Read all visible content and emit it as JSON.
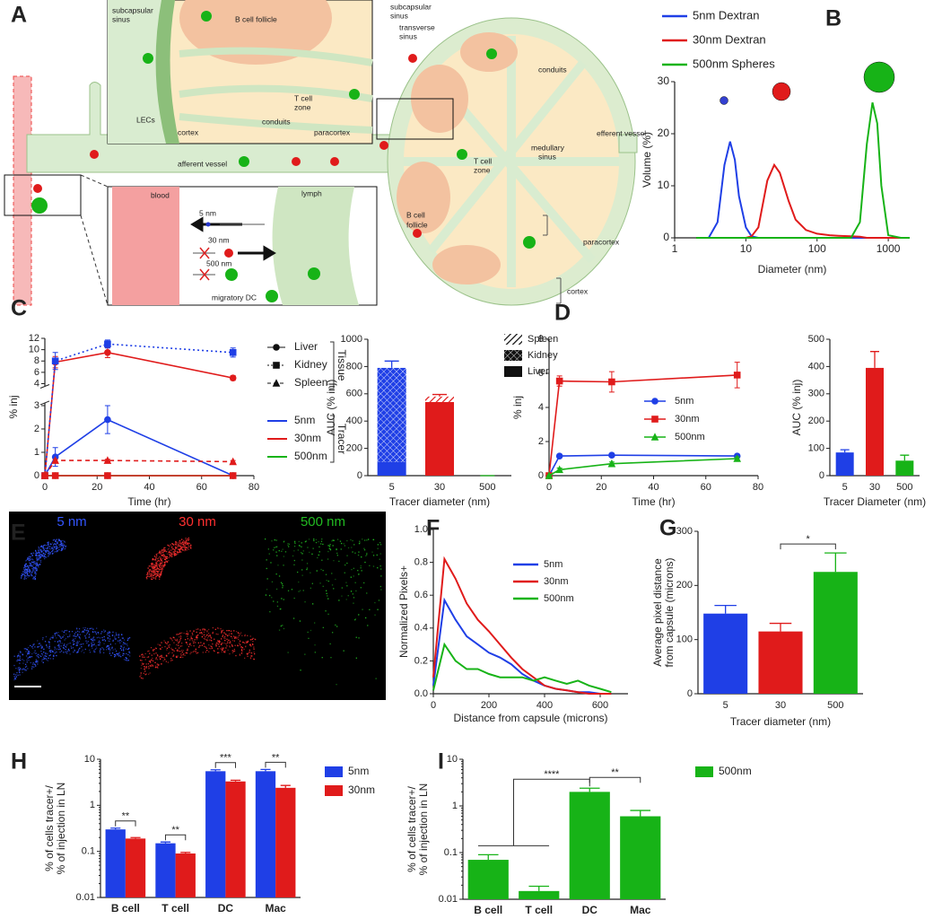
{
  "panels": [
    "A",
    "B",
    "C",
    "D",
    "E",
    "F",
    "G",
    "H",
    "I"
  ],
  "diagram": {
    "labels": [
      "subcapsular",
      "sinus",
      "B cell follicle",
      "LECs",
      "cortex",
      "conduits",
      "T cell",
      "zone",
      "paracortex",
      "afferent vessel",
      "blood",
      "5 nm",
      "30 nm",
      "500 nm",
      "lymph",
      "migratory DC",
      "subcapsular",
      "sinus",
      "transverse",
      "sinus",
      "conduits",
      "efferent vessel",
      "medullary",
      "sinus",
      "T cell",
      "zone",
      "B cell",
      "follicle",
      "paracortex",
      "cortex"
    ]
  },
  "image": {
    "labels": [
      "5 nm",
      "30 nm",
      "500 nm"
    ]
  },
  "chart_data": [
    {
      "type": "line",
      "xlabel": "Diameter (nm)",
      "ylabel": "Volume (%)",
      "xlog": true,
      "xlim": [
        1,
        2000
      ],
      "xticks": [
        1,
        10,
        100,
        1000
      ],
      "ylim": [
        0,
        30
      ],
      "yticks": [
        0,
        10,
        20,
        30
      ],
      "x": [
        2,
        3,
        4,
        5,
        6,
        7,
        8,
        10,
        12,
        15,
        20,
        25,
        30,
        40,
        50,
        70,
        100,
        150,
        200,
        300,
        400,
        500,
        600,
        700,
        800,
        1000,
        1500,
        2000
      ],
      "series": [
        {
          "name": "5nm Dextran",
          "color": "#1f3fe6",
          "values": [
            0,
            0,
            3,
            14,
            18.5,
            15,
            8,
            2,
            0.3,
            0,
            0,
            0,
            0,
            0,
            0,
            0,
            0,
            0,
            0,
            0,
            0,
            0,
            0,
            0,
            0,
            0,
            0,
            0
          ]
        },
        {
          "name": "30nm Dextran",
          "color": "#e01b1b",
          "values": [
            0,
            0,
            0,
            0,
            0,
            0,
            0,
            0,
            0.3,
            2,
            11,
            14,
            12.5,
            7,
            3.5,
            1.5,
            0.8,
            0.5,
            0.4,
            0.3,
            0.2,
            0,
            0,
            0,
            0,
            0,
            0,
            0
          ]
        },
        {
          "name": "500nm Spheres",
          "color": "#17b317",
          "values": [
            0,
            0,
            0,
            0,
            0,
            0,
            0,
            0,
            0,
            0,
            0,
            0,
            0,
            0,
            0,
            0,
            0,
            0,
            0,
            0,
            3,
            18,
            26,
            22,
            10,
            0.5,
            0,
            0
          ]
        }
      ]
    },
    {
      "type": "line",
      "xlabel": "Time (hr)",
      "ylabel": "% inj",
      "xlim": [
        0,
        80
      ],
      "xticks": [
        0,
        20,
        40,
        60,
        80
      ],
      "ylim": [
        0,
        12
      ],
      "ybreak": [
        3,
        4
      ],
      "yticks": [
        0,
        1,
        2,
        3,
        4,
        6,
        8,
        10,
        12
      ],
      "x": [
        0,
        4,
        24,
        72
      ],
      "legend": {
        "groups": [
          {
            "title": "Tissue",
            "items": [
              "Liver",
              "Kidney",
              "Spleen"
            ],
            "markers": [
              "circle",
              "square",
              "triangle"
            ]
          },
          {
            "title": "Tracer",
            "items": [
              "5nm",
              "30nm",
              "500nm"
            ],
            "colors": [
              "#1f3fe6",
              "#e01b1b",
              "#17b317"
            ]
          }
        ]
      },
      "series": [
        {
          "color": "#1f3fe6",
          "marker": "circle",
          "dash": "solid",
          "values": [
            0,
            0.8,
            2.4,
            0
          ],
          "errors": [
            0,
            0.4,
            0.6,
            0
          ]
        },
        {
          "color": "#e01b1b",
          "marker": "circle",
          "dash": "solid",
          "values": [
            0,
            7.8,
            9.5,
            5
          ],
          "errors": [
            0,
            1,
            0.9,
            0.4
          ]
        },
        {
          "color": "#1f3fe6",
          "marker": "square",
          "dash": "dotted",
          "values": [
            0,
            8,
            11,
            9.5
          ],
          "errors": [
            0,
            1.5,
            0.7,
            0.8
          ]
        },
        {
          "color": "#e01b1b",
          "marker": "triangle",
          "dash": "dashed",
          "values": [
            0,
            0.65,
            0.65,
            0.6
          ],
          "errors": [
            0,
            0.05,
            0.05,
            0.05
          ]
        },
        {
          "color": "#17b317",
          "marker": "circle",
          "dash": "solid",
          "values": [
            0,
            0,
            0,
            0
          ],
          "errors": [
            0,
            0,
            0,
            0
          ]
        },
        {
          "color": "#e01b1b",
          "marker": "square",
          "dash": "solid",
          "values": [
            0,
            0,
            0,
            0
          ],
          "errors": [
            0,
            0,
            0,
            0
          ]
        }
      ]
    },
    {
      "type": "bar",
      "stacked": true,
      "xlabel": "Tracer diameter  (nm)",
      "ylabel": "AUC (% inj)",
      "categories": [
        "5",
        "30",
        "500"
      ],
      "colors": [
        "#1f3fe6",
        "#e01b1b",
        "#17b317"
      ],
      "legend_color": "#111111",
      "ylim": [
        0,
        1000
      ],
      "yticks": [
        0,
        200,
        400,
        600,
        800,
        1000
      ],
      "series": [
        {
          "name": "Liver",
          "pattern": "solid",
          "values": [
            100,
            540,
            0
          ]
        },
        {
          "name": "Kidney",
          "pattern": "crosshatch",
          "values": [
            690,
            0,
            0
          ]
        },
        {
          "name": "Spleen",
          "pattern": "hatch",
          "values": [
            0,
            40,
            0
          ],
          "errors": [
            50,
            15,
            0
          ]
        }
      ]
    },
    {
      "type": "line",
      "xlabel": "Time  (hr)",
      "ylabel": "% inj",
      "xlim": [
        0,
        80
      ],
      "xticks": [
        0,
        20,
        40,
        60,
        80
      ],
      "ylim": [
        0,
        8
      ],
      "yticks": [
        0,
        2,
        4,
        6,
        8
      ],
      "x": [
        0,
        4,
        24,
        72
      ],
      "series": [
        {
          "name": "5nm",
          "color": "#1f3fe6",
          "marker": "circle",
          "dash": "solid",
          "values": [
            0,
            1.15,
            1.2,
            1.15
          ],
          "errors": [
            0,
            0.1,
            0.1,
            0.1
          ]
        },
        {
          "name": "30nm",
          "color": "#e01b1b",
          "marker": "square",
          "dash": "solid",
          "values": [
            0,
            5.55,
            5.5,
            5.9
          ],
          "errors": [
            0,
            0.3,
            0.6,
            0.75
          ]
        },
        {
          "name": "500nm",
          "color": "#17b317",
          "marker": "triangle",
          "dash": "solid",
          "values": [
            0,
            0.35,
            0.7,
            1.0
          ],
          "errors": [
            0,
            0.1,
            0.1,
            0.1
          ]
        }
      ]
    },
    {
      "type": "bar",
      "xlabel": "Tracer Diameter (nm)",
      "ylabel": "AUC  (% inj)",
      "categories": [
        "5",
        "30",
        "500"
      ],
      "colors": [
        "#1f3fe6",
        "#e01b1b",
        "#17b317"
      ],
      "ylim": [
        0,
        500
      ],
      "yticks": [
        0,
        100,
        200,
        300,
        400,
        500
      ],
      "series": [
        {
          "values": [
            85,
            395,
            55
          ],
          "errors": [
            10,
            60,
            20
          ]
        }
      ]
    },
    {
      "type": "line",
      "xlabel": "Distance from capsule  (microns)",
      "ylabel": "Normalized Pixels+",
      "xlim": [
        0,
        700
      ],
      "xticks": [
        0,
        200,
        400,
        600
      ],
      "ylim": [
        0,
        1
      ],
      "yticks": [
        {
          "value": 0,
          "label": "0.0"
        },
        {
          "value": 0.2,
          "label": "0.2"
        },
        {
          "value": 0.4,
          "label": "0.4"
        },
        {
          "value": 0.6,
          "label": "0.6"
        },
        {
          "value": 0.8,
          "label": "0.8"
        },
        {
          "value": 1,
          "label": "1.0"
        }
      ],
      "x": [
        0,
        40,
        80,
        120,
        160,
        200,
        240,
        280,
        320,
        360,
        400,
        440,
        480,
        520,
        560,
        600,
        640
      ],
      "series": [
        {
          "name": "5nm",
          "color": "#1f3fe6",
          "values": [
            0.05,
            0.57,
            0.45,
            0.35,
            0.3,
            0.25,
            0.22,
            0.18,
            0.12,
            0.08,
            0.05,
            0.03,
            0.02,
            0.01,
            0.01,
            0,
            0
          ]
        },
        {
          "name": "30nm",
          "color": "#e01b1b",
          "values": [
            0.1,
            0.82,
            0.7,
            0.55,
            0.45,
            0.38,
            0.3,
            0.22,
            0.15,
            0.1,
            0.05,
            0.03,
            0.02,
            0.01,
            0,
            0,
            0
          ]
        },
        {
          "name": "500nm",
          "color": "#17b317",
          "values": [
            0.02,
            0.3,
            0.2,
            0.15,
            0.15,
            0.12,
            0.1,
            0.1,
            0.1,
            0.08,
            0.1,
            0.08,
            0.06,
            0.08,
            0.05,
            0.03,
            0.01
          ]
        }
      ]
    },
    {
      "type": "bar",
      "xlabel": "Tracer diameter (nm)",
      "ylabel": [
        "Average pixel distance",
        "from capsule  (microns)"
      ],
      "categories": [
        "5",
        "30",
        "500"
      ],
      "colors": [
        "#1f3fe6",
        "#e01b1b",
        "#17b317"
      ],
      "ylim": [
        0,
        300
      ],
      "yticks": [
        0,
        100,
        200,
        300
      ],
      "series": [
        {
          "values": [
            148,
            115,
            225
          ],
          "errors": [
            15,
            15,
            35
          ]
        }
      ],
      "annotations": [
        "*"
      ]
    },
    {
      "type": "bar",
      "ylog": true,
      "ylabel": [
        "% of cells tracer+/",
        "% of injection in LN"
      ],
      "categories": [
        "B cell",
        "T cell",
        "DC",
        "Mac"
      ],
      "ylim": [
        0.01,
        10
      ],
      "yticks": [
        0.01,
        0.1,
        1,
        10
      ],
      "series": [
        {
          "name": "5nm",
          "color": "#1f3fe6",
          "values": [
            0.3,
            0.15,
            5.5,
            5.5
          ],
          "errors": [
            0.02,
            0.01,
            0.4,
            0.5
          ]
        },
        {
          "name": "30nm",
          "color": "#e01b1b",
          "values": [
            0.19,
            0.09,
            3.3,
            2.4
          ],
          "errors": [
            0.01,
            0.005,
            0.2,
            0.3
          ]
        }
      ],
      "annotations": [
        "**",
        "**",
        "***",
        "**"
      ]
    },
    {
      "type": "bar",
      "ylog": true,
      "ylabel": [
        "% of cells tracer+/",
        "% of injection in LN"
      ],
      "categories": [
        "B cell",
        "T cell",
        "DC",
        "Mac"
      ],
      "ylim": [
        0.01,
        10
      ],
      "yticks": [
        0.01,
        0.1,
        1,
        10
      ],
      "series": [
        {
          "name": "500nm",
          "color": "#17b317",
          "values": [
            0.07,
            0.015,
            2.0,
            0.6
          ],
          "errors": [
            0.02,
            0.004,
            0.4,
            0.2
          ]
        }
      ],
      "annotations": [
        "****",
        "**"
      ]
    }
  ]
}
